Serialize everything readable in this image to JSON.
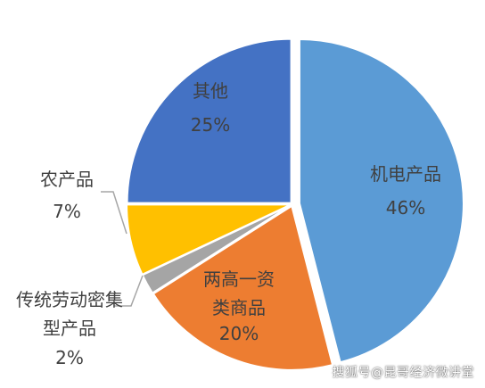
{
  "colors": {
    "mech": "#5b9bd5",
    "labor": "#ed7d31",
    "other": "#4472c4",
    "agri": "#ffc000",
    "gray": "#a5a5a5",
    "leader": "#a6a6a6",
    "label_dark": "#404040",
    "label_on_dark": "#404040"
  },
  "chart_data": {
    "type": "pie",
    "slices": [
      {
        "key": "mech",
        "name": "机电产品",
        "value": 46,
        "label_lines": [
          "机电产品"
        ],
        "pct": "46%"
      },
      {
        "key": "labor",
        "name": "两高一资类商品",
        "value": 20,
        "label_lines": [
          "两高一资",
          "类商品"
        ],
        "pct": "20%"
      },
      {
        "key": "gray",
        "name": "传统劳动密集型产品",
        "value": 2,
        "label_lines": [
          "传统劳动密集",
          "型产品"
        ],
        "pct": "2%"
      },
      {
        "key": "agri",
        "name": "农产品",
        "value": 7,
        "label_lines": [
          "农产品"
        ],
        "pct": "7%"
      },
      {
        "key": "other",
        "name": "其他",
        "value": 25,
        "label_lines": [
          "其他"
        ],
        "pct": "25%"
      }
    ]
  },
  "watermark": "搜狐号@昆哥经济微讲堂"
}
